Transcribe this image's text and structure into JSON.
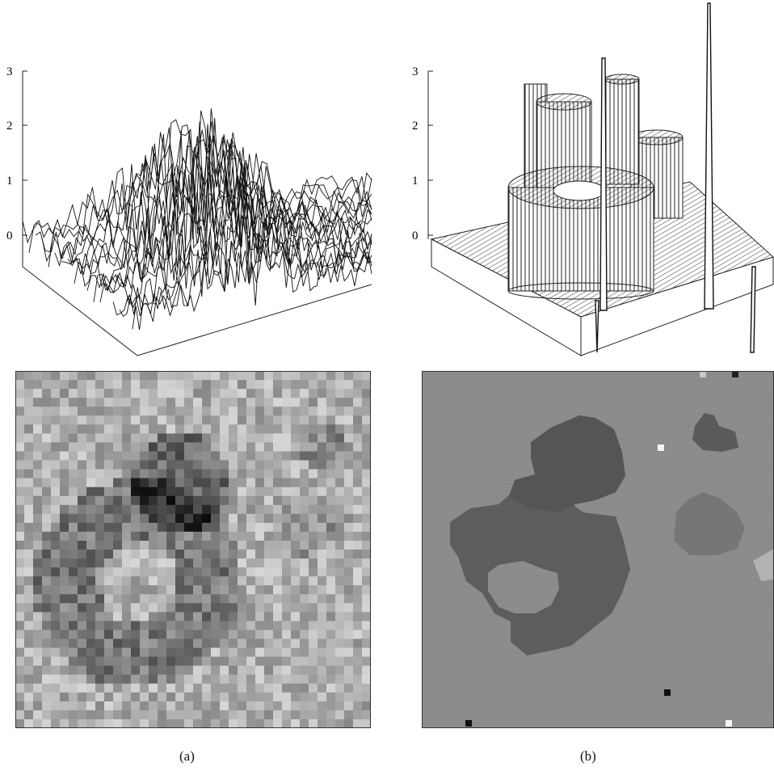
{
  "figure": {
    "left": {
      "caption": "(a)",
      "z_ticks": [
        "3",
        "2",
        "1",
        "0"
      ]
    },
    "right": {
      "caption": "(b)",
      "z_ticks": [
        "3",
        "2",
        "1",
        "0"
      ]
    }
  }
}
